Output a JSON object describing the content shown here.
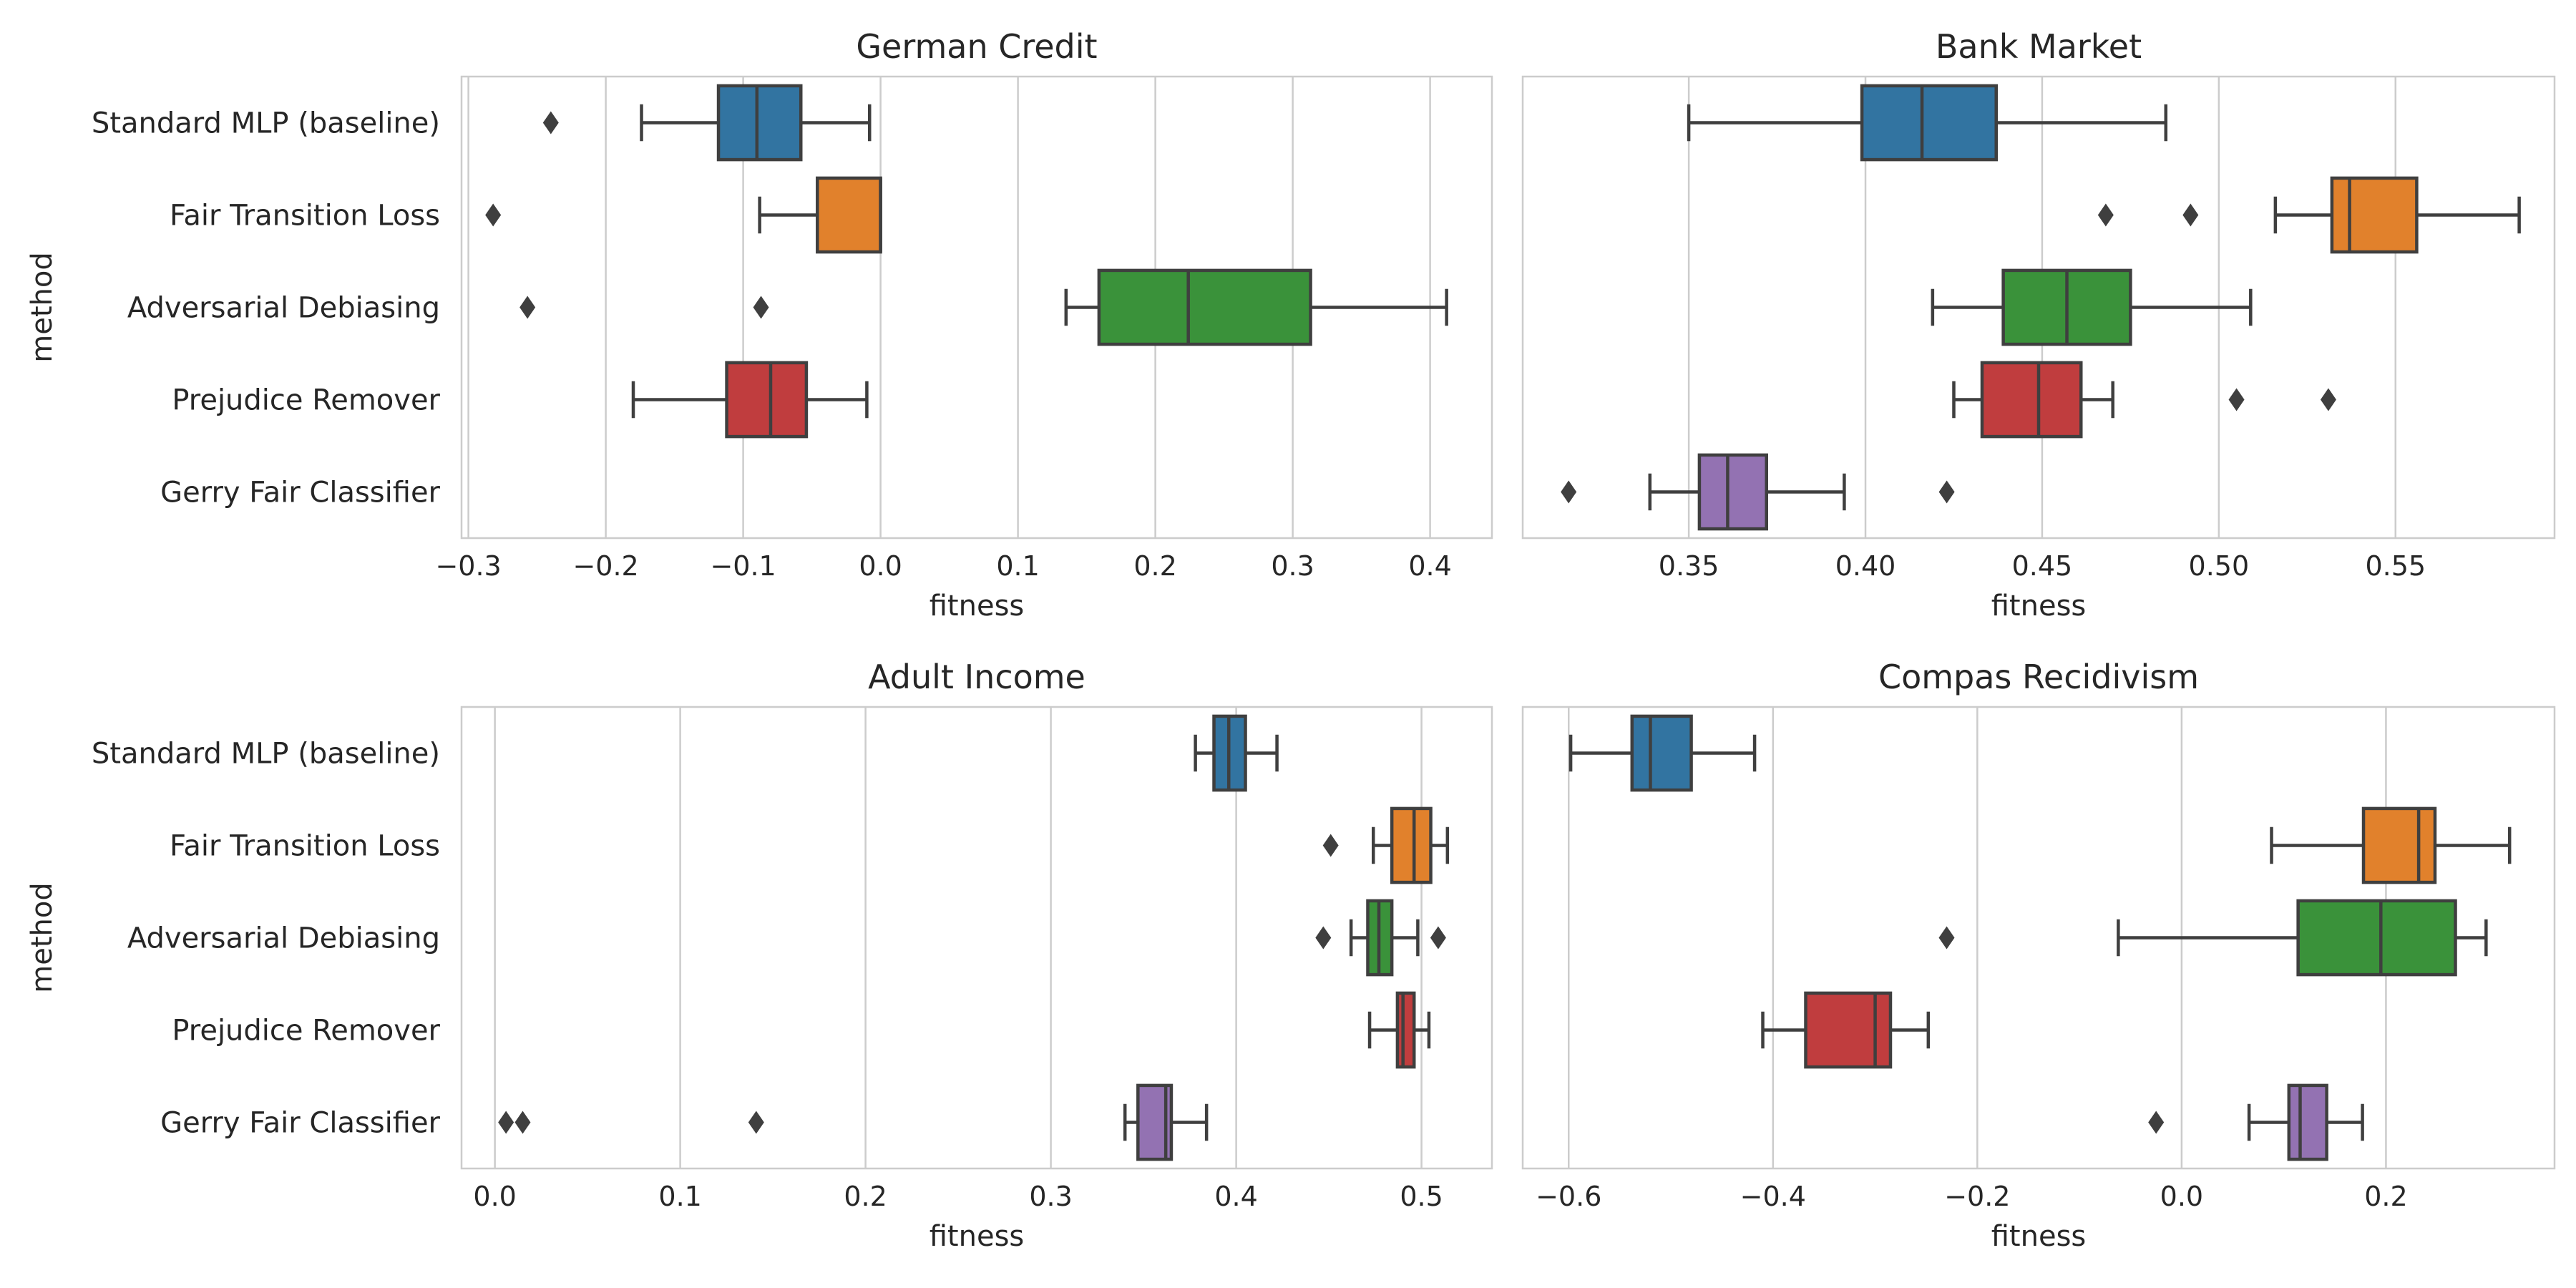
{
  "chart_data": [
    {
      "type": "box",
      "title": "German Credit",
      "xlabel": "fitness",
      "ylabel": "method",
      "xlim": [
        -0.305,
        0.445
      ],
      "xticks": [
        -0.3,
        -0.2,
        -0.1,
        0.0,
        0.1,
        0.2,
        0.3,
        0.4
      ],
      "xtick_labels": [
        "−0.3",
        "−0.2",
        "−0.1",
        "0.0",
        "0.1",
        "0.2",
        "0.3",
        "0.4"
      ],
      "grid": "x",
      "categories": [
        "Standard MLP (baseline)",
        "Fair Transition Loss",
        "Adversarial Debiasing",
        "Prejudice Remover",
        "Gerry Fair Classifier"
      ],
      "boxes": [
        {
          "whislo": -0.174,
          "q1": -0.118,
          "med": -0.09,
          "q3": -0.058,
          "whishi": -0.008,
          "fliers": [
            -0.24
          ]
        },
        {
          "whislo": -0.088,
          "q1": -0.046,
          "med": 0.0,
          "q3": 0.0,
          "whishi": 0.0,
          "fliers": [
            -0.282
          ]
        },
        {
          "whislo": 0.135,
          "q1": 0.159,
          "med": 0.224,
          "q3": 0.313,
          "whishi": 0.412,
          "fliers": [
            -0.257,
            -0.087
          ]
        },
        {
          "whislo": -0.18,
          "q1": -0.112,
          "med": -0.08,
          "q3": -0.054,
          "whishi": -0.01,
          "fliers": []
        },
        null
      ]
    },
    {
      "type": "box",
      "title": "Bank Market",
      "xlabel": "fitness",
      "ylabel": "",
      "xlim": [
        0.303,
        0.595
      ],
      "xticks": [
        0.35,
        0.4,
        0.45,
        0.5,
        0.55
      ],
      "xtick_labels": [
        "0.35",
        "0.40",
        "0.45",
        "0.50",
        "0.55"
      ],
      "grid": "x",
      "categories": [
        "Standard MLP (baseline)",
        "Fair Transition Loss",
        "Adversarial Debiasing",
        "Prejudice Remover",
        "Gerry Fair Classifier"
      ],
      "boxes": [
        {
          "whislo": 0.35,
          "q1": 0.399,
          "med": 0.416,
          "q3": 0.437,
          "whishi": 0.485,
          "fliers": []
        },
        {
          "whislo": 0.516,
          "q1": 0.532,
          "med": 0.537,
          "q3": 0.556,
          "whishi": 0.585,
          "fliers": [
            0.468,
            0.492
          ]
        },
        {
          "whislo": 0.419,
          "q1": 0.439,
          "med": 0.457,
          "q3": 0.475,
          "whishi": 0.509,
          "fliers": []
        },
        {
          "whislo": 0.425,
          "q1": 0.433,
          "med": 0.449,
          "q3": 0.461,
          "whishi": 0.47,
          "fliers": [
            0.505,
            0.531
          ]
        },
        {
          "whislo": 0.339,
          "q1": 0.353,
          "med": 0.361,
          "q3": 0.372,
          "whishi": 0.394,
          "fliers": [
            0.316,
            0.423
          ]
        }
      ]
    },
    {
      "type": "box",
      "title": "Adult Income",
      "xlabel": "fitness",
      "ylabel": "method",
      "xlim": [
        -0.018,
        0.538
      ],
      "xticks": [
        0.0,
        0.1,
        0.2,
        0.3,
        0.4,
        0.5
      ],
      "xtick_labels": [
        "0.0",
        "0.1",
        "0.2",
        "0.3",
        "0.4",
        "0.5"
      ],
      "grid": "x",
      "categories": [
        "Standard MLP (baseline)",
        "Fair Transition Loss",
        "Adversarial Debiasing",
        "Prejudice Remover",
        "Gerry Fair Classifier"
      ],
      "boxes": [
        {
          "whislo": 0.378,
          "q1": 0.388,
          "med": 0.396,
          "q3": 0.405,
          "whishi": 0.422,
          "fliers": []
        },
        {
          "whislo": 0.474,
          "q1": 0.484,
          "med": 0.496,
          "q3": 0.505,
          "whishi": 0.514,
          "fliers": [
            0.451
          ]
        },
        {
          "whislo": 0.462,
          "q1": 0.471,
          "med": 0.477,
          "q3": 0.484,
          "whishi": 0.498,
          "fliers": [
            0.447,
            0.509
          ]
        },
        {
          "whislo": 0.472,
          "q1": 0.487,
          "med": 0.49,
          "q3": 0.496,
          "whishi": 0.504,
          "fliers": []
        },
        {
          "whislo": 0.34,
          "q1": 0.347,
          "med": 0.362,
          "q3": 0.365,
          "whishi": 0.384,
          "fliers": [
            0.006,
            0.015,
            0.141
          ]
        }
      ]
    },
    {
      "type": "box",
      "title": "Compas Recidivism",
      "xlabel": "fitness",
      "ylabel": "",
      "xlim": [
        -0.645,
        0.365
      ],
      "xticks": [
        -0.6,
        -0.4,
        -0.2,
        0.0,
        0.2
      ],
      "xtick_labels": [
        "−0.6",
        "−0.4",
        "−0.2",
        "0.0",
        "0.2"
      ],
      "grid": "x",
      "categories": [
        "Standard MLP (baseline)",
        "Fair Transition Loss",
        "Adversarial Debiasing",
        "Prejudice Remover",
        "Gerry Fair Classifier"
      ],
      "boxes": [
        {
          "whislo": -0.598,
          "q1": -0.538,
          "med": -0.52,
          "q3": -0.48,
          "whishi": -0.418,
          "fliers": []
        },
        {
          "whislo": 0.088,
          "q1": 0.178,
          "med": 0.232,
          "q3": 0.248,
          "whishi": 0.321,
          "fliers": []
        },
        {
          "whislo": -0.062,
          "q1": 0.114,
          "med": 0.195,
          "q3": 0.268,
          "whishi": 0.298,
          "fliers": [
            -0.23
          ]
        },
        {
          "whislo": -0.41,
          "q1": -0.368,
          "med": -0.3,
          "q3": -0.285,
          "whishi": -0.248,
          "fliers": []
        },
        {
          "whislo": 0.066,
          "q1": 0.105,
          "med": 0.116,
          "q3": 0.142,
          "whishi": 0.177,
          "fliers": [
            -0.025
          ]
        }
      ]
    }
  ],
  "colors": [
    "#3274a1",
    "#e1812c",
    "#3a923a",
    "#c03d3e",
    "#9372b2"
  ],
  "frame_color": "#cccccc",
  "line_color": "#3f3f3f"
}
